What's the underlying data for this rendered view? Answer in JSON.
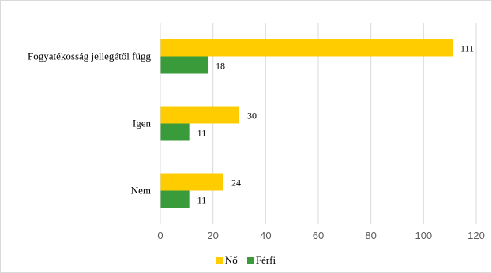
{
  "chart_data": {
    "type": "bar",
    "orientation": "horizontal",
    "categories": [
      "Fogyatékosság jellegétől függ",
      "Igen",
      "Nem"
    ],
    "series": [
      {
        "name": "Nő",
        "values": [
          111,
          30,
          24
        ],
        "color": "#ffcc00"
      },
      {
        "name": "Férfi",
        "values": [
          18,
          11,
          11
        ],
        "color": "#3a9b3a"
      }
    ],
    "xlim": [
      0,
      120
    ],
    "xticks": [
      0,
      20,
      40,
      60,
      80,
      100,
      120
    ],
    "grid": "vertical",
    "legend_position": "bottom",
    "title": "",
    "xlabel": "",
    "ylabel": ""
  }
}
